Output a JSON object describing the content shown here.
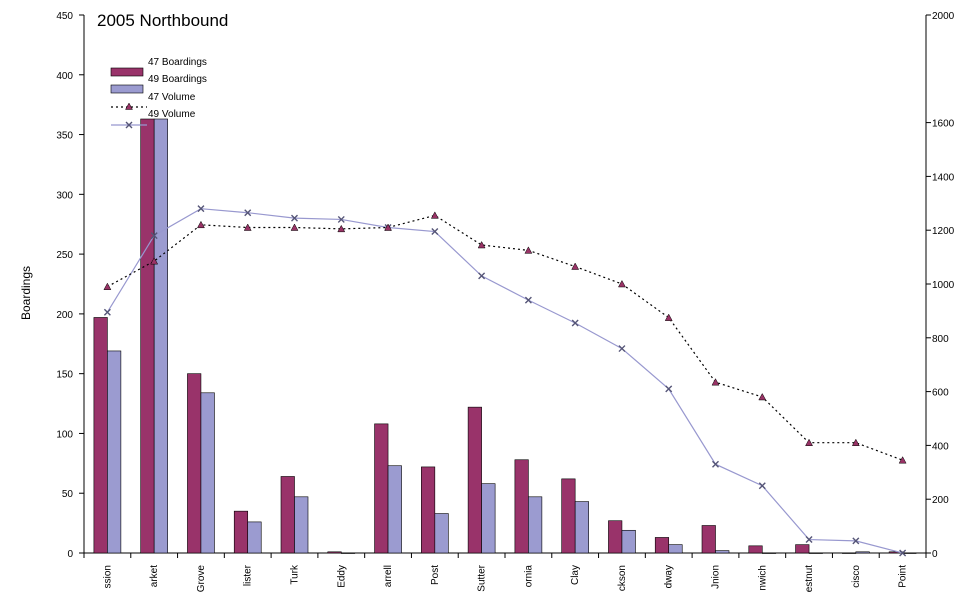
{
  "chart_data": {
    "type": "bar",
    "title": "2005 Northbound",
    "ylabel": "Boardings",
    "ylim": [
      0,
      450
    ],
    "y2lim": [
      0,
      2000
    ],
    "yticks": [
      "0",
      "50",
      "100",
      "150",
      "200",
      "250",
      "300",
      "350",
      "400",
      "450"
    ],
    "y2ticks": [
      "0",
      "200",
      "400",
      "600",
      "800",
      "1000",
      "1200",
      "1400",
      "1600",
      "2000"
    ],
    "categories": [
      "ssion",
      "arket",
      "Grove",
      "lister",
      "Turk",
      "Eddy",
      "arrell",
      "Post",
      "Sutter",
      "ornia",
      "Clay",
      "ckson",
      "dway",
      "Jnion",
      "nwich",
      "estnut",
      "cisco",
      "Point"
    ],
    "legend_placement": "top-left",
    "grid": false,
    "colors": {
      "bar47": "#99336a",
      "bar49": "#9b9bd0",
      "line47": "#000000",
      "line49": "#9898cf",
      "marker47": "#993366"
    },
    "series": [
      {
        "name": "47 Boardings",
        "kind": "bar",
        "axis": "left",
        "values": [
          197,
          350,
          150,
          35,
          64,
          1,
          108,
          72,
          122,
          78,
          62,
          27,
          13,
          23,
          6,
          7,
          0,
          1
        ]
      },
      {
        "name": "49 Boardings",
        "kind": "bar",
        "axis": "left",
        "values": [
          169,
          350,
          134,
          26,
          47,
          0,
          73,
          33,
          58,
          47,
          43,
          19,
          7,
          2,
          0,
          0,
          1,
          0
        ]
      },
      {
        "name": "47 Volume",
        "kind": "line",
        "axis": "right",
        "values": [
          990,
          1085,
          1220,
          1210,
          1210,
          1205,
          1210,
          1255,
          1145,
          1125,
          1065,
          1000,
          875,
          635,
          580,
          410,
          410,
          345
        ]
      },
      {
        "name": "49 Volume",
        "kind": "line",
        "axis": "right",
        "values": [
          895,
          1180,
          1280,
          1265,
          1245,
          1240,
          1210,
          1195,
          1030,
          940,
          855,
          760,
          610,
          330,
          250,
          50,
          45,
          0
        ]
      }
    ]
  }
}
